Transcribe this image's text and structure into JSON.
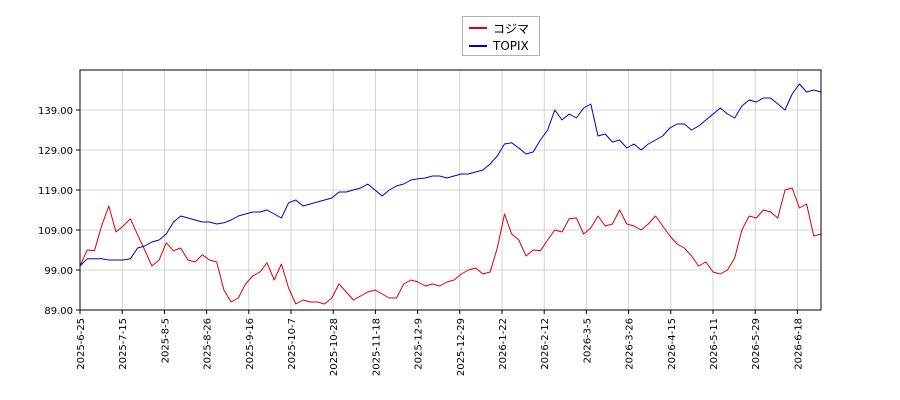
{
  "chart_data": {
    "type": "line",
    "title": "",
    "xlabel": "",
    "ylabel": "",
    "ylim": [
      89.0,
      149.0
    ],
    "y_ticks": [
      "89.00",
      "99.00",
      "109.00",
      "119.00",
      "129.00",
      "139.00"
    ],
    "x_ticks": [
      "2025-6-25",
      "2025-7-15",
      "2025-8-5",
      "2025-8-26",
      "2025-9-16",
      "2025-10-7",
      "2025-10-28",
      "2025-11-18",
      "2025-12-9",
      "2025-12-29",
      "2026-1-22",
      "2026-2-12",
      "2026-3-5",
      "2026-3-26",
      "2026-4-15",
      "2026-5-11",
      "2026-5-29",
      "2026-6-18"
    ],
    "grid": true,
    "legend_position": "top-center",
    "series": [
      {
        "name": "コジマ",
        "color": "#dd0000",
        "values": [
          100.0,
          104.0,
          103.8,
          110.0,
          115.0,
          108.5,
          110.0,
          111.8,
          107.8,
          104.0,
          100.0,
          101.5,
          105.8,
          103.8,
          104.5,
          101.5,
          101.0,
          102.8,
          101.5,
          101.0,
          94.0,
          91.0,
          92.0,
          95.5,
          97.5,
          98.5,
          100.8,
          96.5,
          100.5,
          94.5,
          90.5,
          91.5,
          91.0,
          91.0,
          90.5,
          92.0,
          95.5,
          93.5,
          91.5,
          92.5,
          93.5,
          94.0,
          93.0,
          92.0,
          92.0,
          95.5,
          96.5,
          96.0,
          95.0,
          95.5,
          95.0,
          96.0,
          96.5,
          98.0,
          99.0,
          99.5,
          98.0,
          98.5,
          104.5,
          113.0,
          108.0,
          106.5,
          102.5,
          104.0,
          103.8,
          106.5,
          109.0,
          108.5,
          111.8,
          112.0,
          108.0,
          109.5,
          112.5,
          110.0,
          110.5,
          114.0,
          110.5,
          110.0,
          109.0,
          110.5,
          112.5,
          110.0,
          107.5,
          105.5,
          104.5,
          102.5,
          100.0,
          101.0,
          98.5,
          98.0,
          99.0,
          102.0,
          109.0,
          112.5,
          112.0,
          114.0,
          113.5,
          112.0,
          119.0,
          119.5,
          114.5,
          115.5,
          107.5,
          108.0
        ]
      },
      {
        "name": "TOPIX",
        "color": "#0000cc",
        "values": [
          100.0,
          101.8,
          101.8,
          101.8,
          101.5,
          101.5,
          101.5,
          101.8,
          104.5,
          105.0,
          106.0,
          106.5,
          108.0,
          111.0,
          112.5,
          112.0,
          111.5,
          111.0,
          111.0,
          110.5,
          110.8,
          111.5,
          112.5,
          113.0,
          113.5,
          113.5,
          114.0,
          113.0,
          112.0,
          115.8,
          116.5,
          115.0,
          115.5,
          116.0,
          116.5,
          117.0,
          118.5,
          118.5,
          119.0,
          119.5,
          120.5,
          119.0,
          117.5,
          119.0,
          120.0,
          120.5,
          121.5,
          121.8,
          122.0,
          122.5,
          122.5,
          122.0,
          122.5,
          123.0,
          123.0,
          123.5,
          124.0,
          125.5,
          127.5,
          130.5,
          130.8,
          129.5,
          128.0,
          128.5,
          131.5,
          134.0,
          139.0,
          136.5,
          138.0,
          137.0,
          139.5,
          140.5,
          132.5,
          133.0,
          131.0,
          131.5,
          129.5,
          130.5,
          129.0,
          130.5,
          131.5,
          132.5,
          134.5,
          135.5,
          135.5,
          134.0,
          135.0,
          136.5,
          138.0,
          139.5,
          138.0,
          137.0,
          140.0,
          141.5,
          141.0,
          142.0,
          142.0,
          140.5,
          139.0,
          143.0,
          145.5,
          143.5,
          144.0,
          143.5
        ]
      }
    ]
  }
}
